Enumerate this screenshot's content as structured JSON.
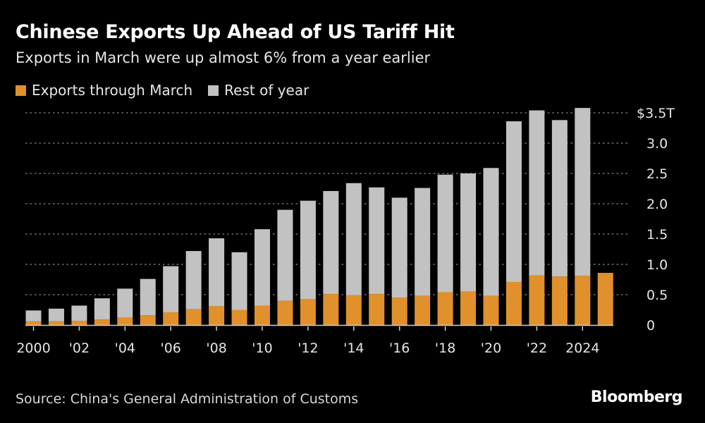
{
  "header": {
    "title": "Chinese Exports Up Ahead of US Tariff Hit",
    "subtitle": "Exports in March were up almost 6% from a year earlier"
  },
  "footer": {
    "source": "Source: China's General Administration of Customs",
    "logo": "Bloomberg"
  },
  "chart_data": {
    "type": "bar",
    "stacked": true,
    "title": "Chinese Exports Up Ahead of US Tariff Hit",
    "subtitle": "Exports in March were up almost 6% from a year earlier",
    "legend_position": "top-left",
    "grid": true,
    "ylim": [
      0,
      3.5
    ],
    "y_unit": "$ trillion",
    "y_ticks": [
      0,
      0.5,
      1.0,
      1.5,
      2.0,
      2.5,
      3.0,
      3.5
    ],
    "y_tick_labels": [
      "0",
      "0.5",
      "1.0",
      "1.5",
      "2.0",
      "2.5",
      "3.0",
      "$3.5T"
    ],
    "x_tick_labels": [
      "2000",
      "'02",
      "'04",
      "'06",
      "'08",
      "'10",
      "'12",
      "'14",
      "'16",
      "'18",
      "'20",
      "'22",
      "2024"
    ],
    "categories": [
      "2000",
      "2001",
      "2002",
      "2003",
      "2004",
      "2005",
      "2006",
      "2007",
      "2008",
      "2009",
      "2010",
      "2011",
      "2012",
      "2013",
      "2014",
      "2015",
      "2016",
      "2017",
      "2018",
      "2019",
      "2020",
      "2021",
      "2022",
      "2023",
      "2024",
      "2025"
    ],
    "series": [
      {
        "name": "Exports through March",
        "color": "#e0912c",
        "values": [
          0.06,
          0.06,
          0.07,
          0.09,
          0.12,
          0.16,
          0.21,
          0.26,
          0.31,
          0.25,
          0.32,
          0.4,
          0.43,
          0.51,
          0.49,
          0.51,
          0.45,
          0.48,
          0.54,
          0.55,
          0.48,
          0.71,
          0.82,
          0.8,
          0.81,
          0.86
        ]
      },
      {
        "name": "Rest of year",
        "color": "#c2c2c2",
        "values": [
          0.18,
          0.21,
          0.25,
          0.35,
          0.48,
          0.6,
          0.76,
          0.96,
          1.12,
          0.95,
          1.26,
          1.5,
          1.62,
          1.7,
          1.85,
          1.76,
          1.65,
          1.78,
          1.94,
          1.95,
          2.11,
          2.65,
          2.72,
          2.58,
          2.77,
          null
        ]
      }
    ]
  }
}
